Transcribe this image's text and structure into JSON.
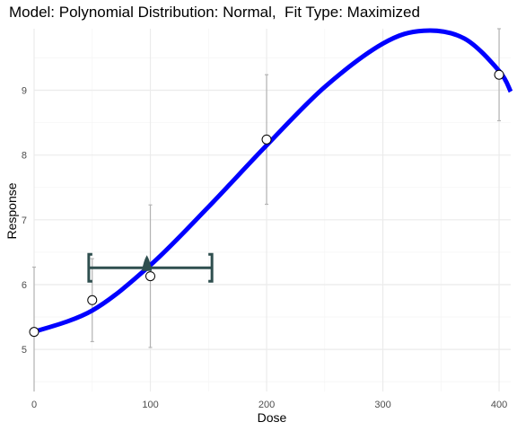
{
  "chart_data": {
    "type": "scatter",
    "title": "Model: Polynomial Distribution: Normal,  Fit Type: Maximized",
    "xlabel": "Dose",
    "ylabel": "Response",
    "xlim": [
      0,
      410
    ],
    "ylim": [
      4.35,
      9.95
    ],
    "x_ticks": [
      0,
      100,
      200,
      300,
      400
    ],
    "y_ticks": [
      5,
      6,
      7,
      8,
      9
    ],
    "grid": true,
    "colors": {
      "fit_line": "#0000ff",
      "error_bar": "#b3b3b3",
      "bmd_marker": "#2f4f4f",
      "grid_major": "#ebebeb",
      "grid_minor": "#f5f5f5",
      "point_fill": "#ffffff",
      "point_stroke": "#000000"
    },
    "points": [
      {
        "x": 0,
        "y": 5.27,
        "lower": 4.27,
        "upper": 6.27
      },
      {
        "x": 50,
        "y": 5.76,
        "lower": 5.12,
        "upper": 6.4
      },
      {
        "x": 100,
        "y": 6.13,
        "lower": 5.03,
        "upper": 7.23
      },
      {
        "x": 200,
        "y": 8.24,
        "lower": 7.24,
        "upper": 9.24
      },
      {
        "x": 400,
        "y": 9.24,
        "lower": 8.53,
        "upper": 9.95
      }
    ],
    "fit_curve": [
      {
        "x": 0,
        "y": 5.27
      },
      {
        "x": 50,
        "y": 5.6
      },
      {
        "x": 100,
        "y": 6.3
      },
      {
        "x": 150,
        "y": 7.2
      },
      {
        "x": 200,
        "y": 8.15
      },
      {
        "x": 250,
        "y": 9.05
      },
      {
        "x": 300,
        "y": 9.72
      },
      {
        "x": 335,
        "y": 9.92
      },
      {
        "x": 370,
        "y": 9.8
      },
      {
        "x": 400,
        "y": 9.3
      },
      {
        "x": 410,
        "y": 8.98
      }
    ],
    "bmd": {
      "x": 97,
      "y": 6.26,
      "bmdl": 47,
      "bmdu": 153
    }
  }
}
